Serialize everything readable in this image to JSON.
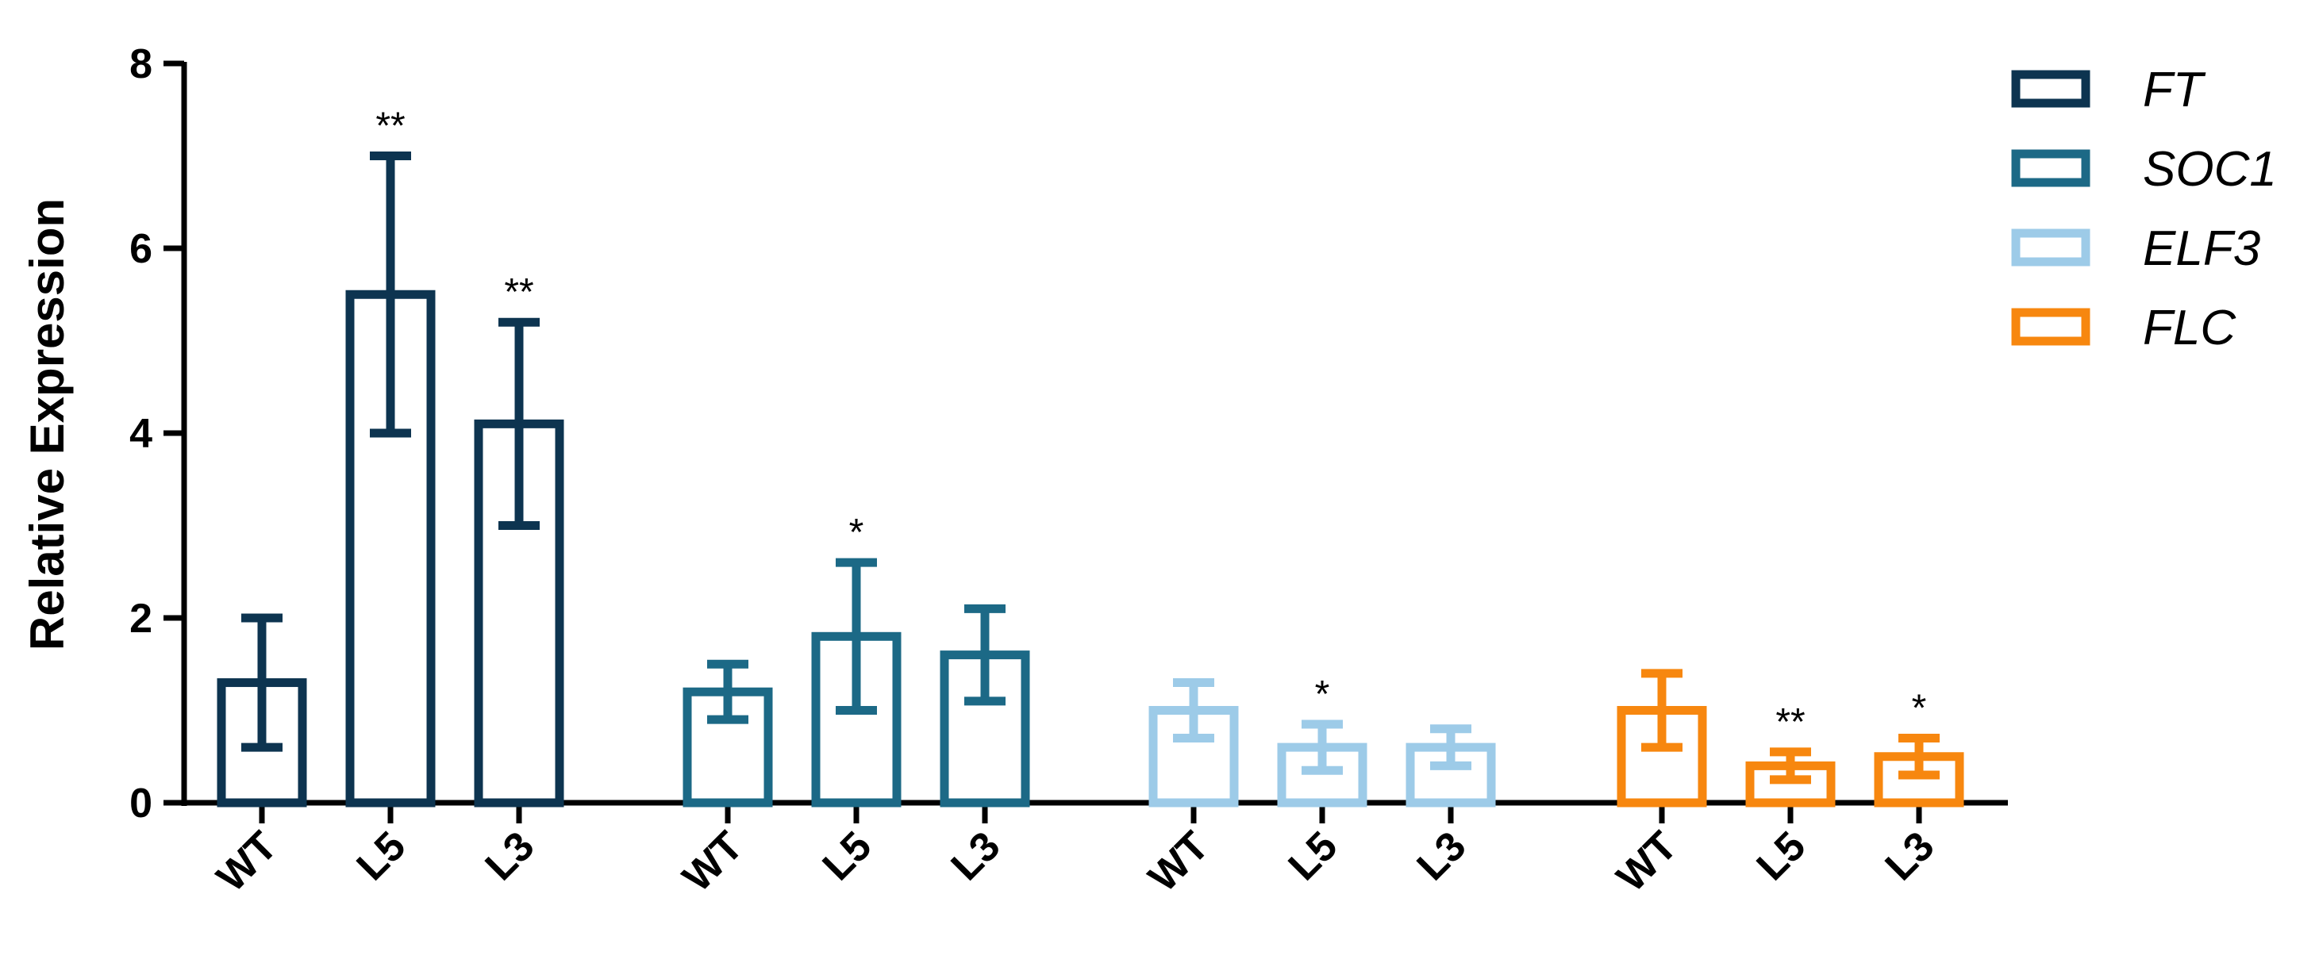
{
  "chart_data": {
    "type": "bar",
    "ylabel": "Relative Expression",
    "ylim": [
      0,
      8
    ],
    "yticks": [
      "0",
      "2",
      "4",
      "6",
      "8"
    ],
    "legend_position": "top-right",
    "groups": [
      {
        "series": "FT",
        "color": "#0d3450",
        "categories": [
          "WT",
          "L5",
          "L3"
        ],
        "values": [
          1.3,
          5.5,
          4.1
        ],
        "errors": [
          0.7,
          1.5,
          1.1
        ],
        "significance": [
          "",
          "**",
          "**"
        ]
      },
      {
        "series": "SOC1",
        "color": "#1c6986",
        "categories": [
          "WT",
          "L5",
          "L3"
        ],
        "values": [
          1.2,
          1.8,
          1.6
        ],
        "errors": [
          0.3,
          0.8,
          0.5
        ],
        "significance": [
          "",
          "*",
          ""
        ]
      },
      {
        "series": "ELF3",
        "color": "#9dcbe8",
        "categories": [
          "WT",
          "L5",
          "L3"
        ],
        "values": [
          1.0,
          0.6,
          0.6
        ],
        "errors": [
          0.3,
          0.25,
          0.2
        ],
        "significance": [
          "",
          "*",
          ""
        ]
      },
      {
        "series": "FLC",
        "color": "#f7870f",
        "categories": [
          "WT",
          "L5",
          "L3"
        ],
        "values": [
          1.0,
          0.4,
          0.5
        ],
        "errors": [
          0.4,
          0.15,
          0.2
        ],
        "significance": [
          "",
          "**",
          "*"
        ]
      }
    ]
  }
}
